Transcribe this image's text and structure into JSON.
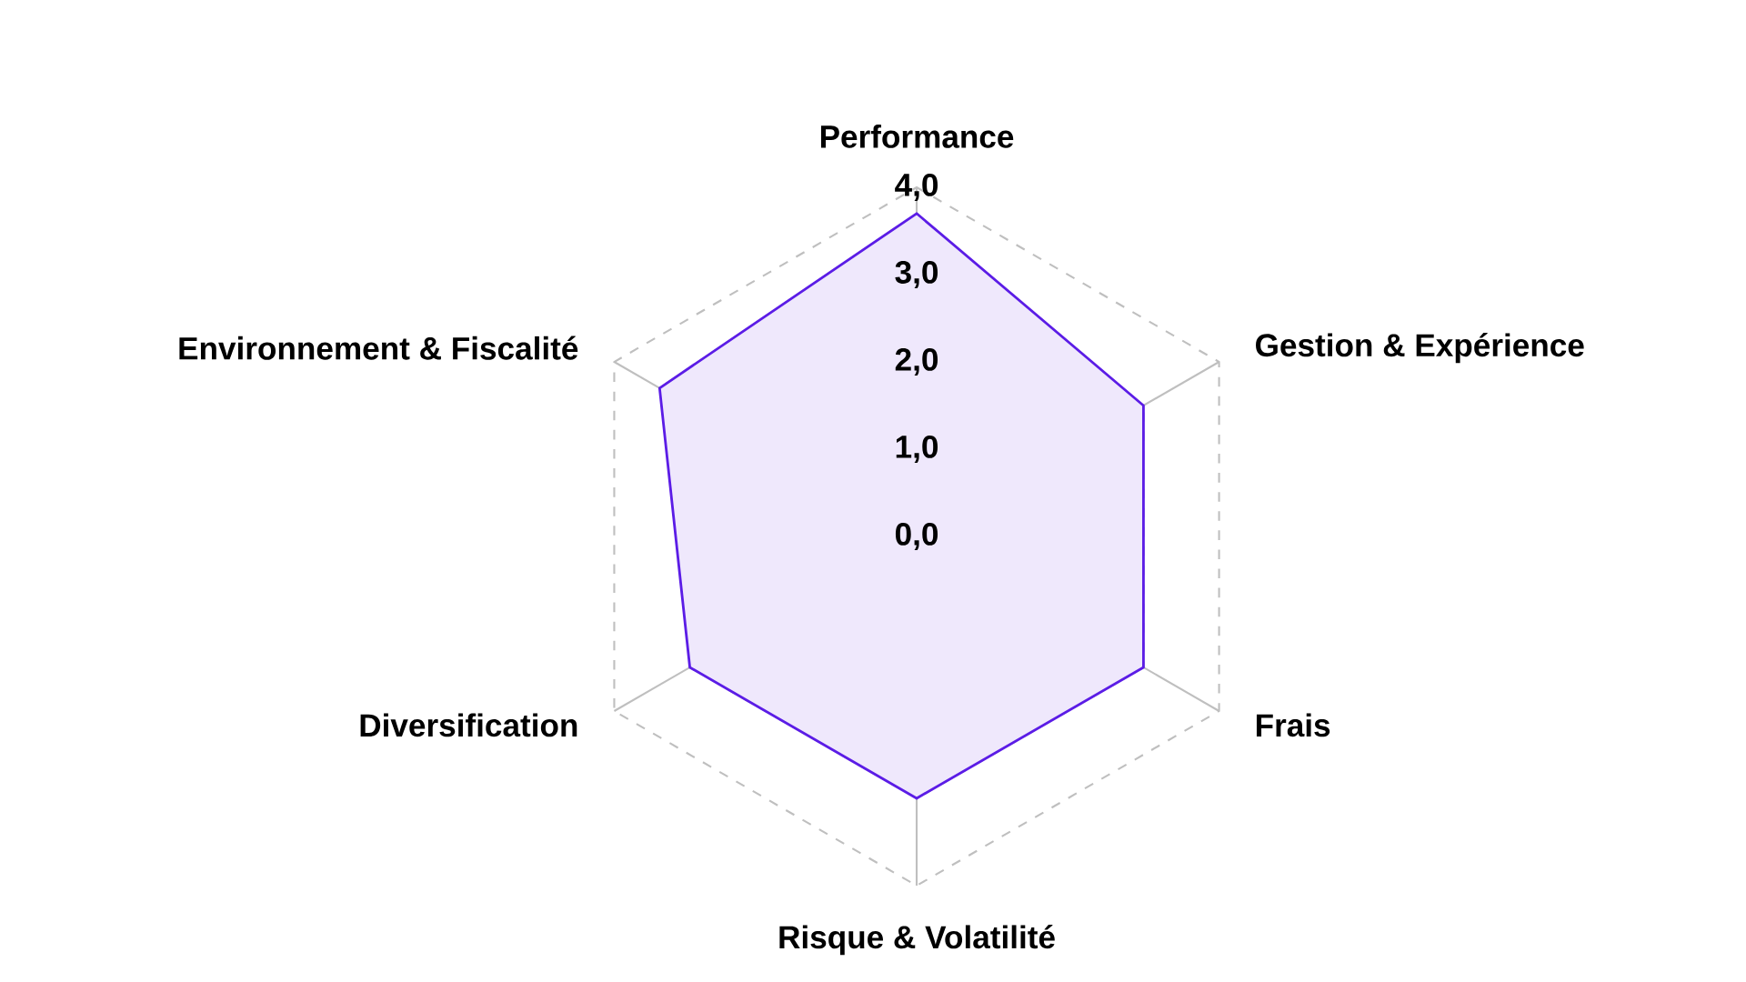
{
  "chart_data": {
    "type": "radar",
    "categories": [
      "Performance",
      "Gestion & Expérience",
      "Frais",
      "Risque & Volatilité",
      "Diversification",
      "Environnement & Fiscalité"
    ],
    "series": [
      {
        "color": "#5b1ce6",
        "values": [
          3.7,
          3.0,
          3.0,
          3.0,
          3.0,
          3.4
        ]
      }
    ],
    "ylim": [
      0,
      4
    ],
    "yticks": [
      {
        "value": 0,
        "label": "0,0"
      },
      {
        "value": 1,
        "label": "1,0"
      },
      {
        "value": 2,
        "label": "2,0"
      },
      {
        "value": 3,
        "label": "3,0"
      },
      {
        "value": 4,
        "label": "4,0"
      }
    ],
    "grid": true
  }
}
